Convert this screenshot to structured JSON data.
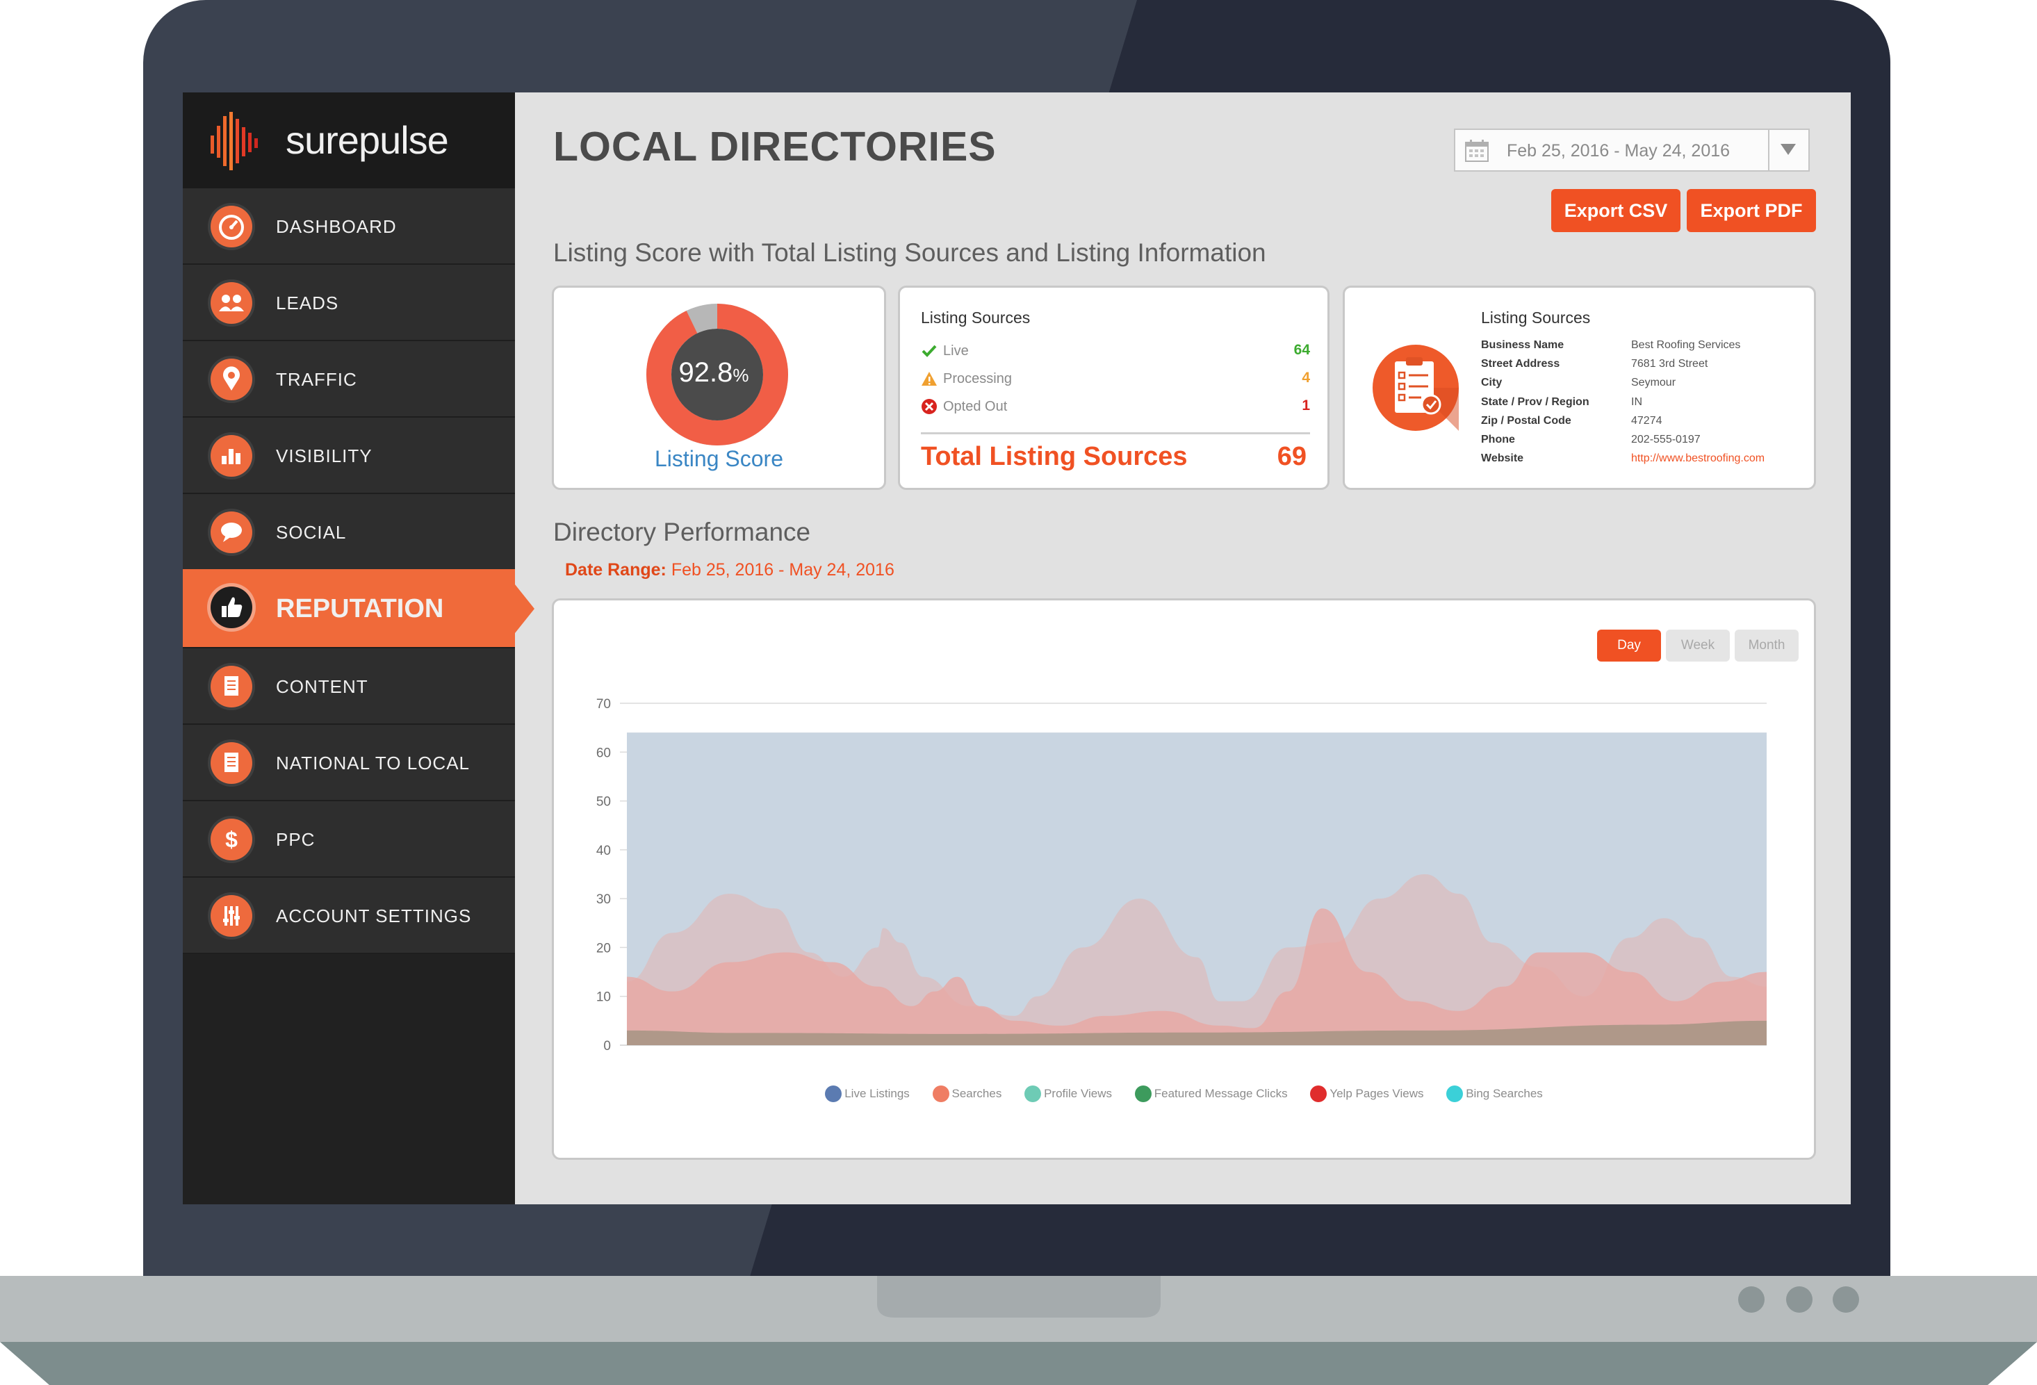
{
  "brand": {
    "name": "surepulse"
  },
  "sidebar": {
    "items": [
      {
        "label": "DASHBOARD",
        "icon": "speedometer-icon"
      },
      {
        "label": "LEADS",
        "icon": "users-icon"
      },
      {
        "label": "TRAFFIC",
        "icon": "map-pin-icon"
      },
      {
        "label": "VISIBILITY",
        "icon": "bar-chart-icon"
      },
      {
        "label": "SOCIAL",
        "icon": "speech-bubble-icon"
      },
      {
        "label": "REPUTATION",
        "icon": "thumbs-up-icon",
        "active": true
      },
      {
        "label": "CONTENT",
        "icon": "document-icon"
      },
      {
        "label": "NATIONAL TO LOCAL",
        "icon": "document-icon"
      },
      {
        "label": "PPC",
        "icon": "dollar-icon"
      },
      {
        "label": "ACCOUNT SETTINGS",
        "icon": "sliders-icon"
      }
    ]
  },
  "header": {
    "title": "LOCAL DIRECTORIES",
    "date_range": "Feb 25, 2016 - May 24, 2016",
    "export_csv": "Export CSV",
    "export_pdf": "Export PDF"
  },
  "listing_section": {
    "title": "Listing Score with Total Listing Sources and Listing Information",
    "score": {
      "value": "92.8",
      "unit": "%",
      "label": "Listing Score",
      "fraction": 0.928
    },
    "sources": {
      "title": "Listing Sources",
      "rows": [
        {
          "label": "Live",
          "value": "64",
          "icon": "check-icon",
          "color": "#3cab2f"
        },
        {
          "label": "Processing",
          "value": "4",
          "icon": "warning-icon",
          "color": "#f0a030"
        },
        {
          "label": "Opted Out",
          "value": "1",
          "icon": "error-icon",
          "color": "#d8231e"
        }
      ],
      "total_label": "Total Listing Sources",
      "total_value": "69"
    },
    "info": {
      "title": "Listing Sources",
      "icon": "clipboard-checklist-icon",
      "rows": [
        {
          "key": "Business Name",
          "value": "Best Roofing Services"
        },
        {
          "key": "Street Address",
          "value": "7681 3rd Street"
        },
        {
          "key": "City",
          "value": "Seymour"
        },
        {
          "key": "State / Prov / Region",
          "value": "IN"
        },
        {
          "key": "Zip / Postal Code",
          "value": "47274"
        },
        {
          "key": "Phone",
          "value": "202-555-0197"
        },
        {
          "key": "Website",
          "value": "http://www.bestroofing.com",
          "link": true
        }
      ]
    }
  },
  "performance": {
    "title": "Directory Performance",
    "date_range_label": "Date Range:",
    "date_range_value": " Feb 25, 2016 - May 24, 2016",
    "toggles": {
      "day": "Day",
      "week": "Week",
      "month": "Month",
      "active": "day"
    }
  },
  "chart_data": {
    "type": "area",
    "ylim": [
      0,
      70
    ],
    "yticks": [
      0,
      10,
      20,
      30,
      40,
      50,
      60,
      70
    ],
    "grid": true,
    "legend_position": "bottom",
    "series": [
      {
        "name": "Live Listings",
        "color": "#5b7bb1",
        "fill": "#c9d5e1",
        "x": [
          0,
          1
        ],
        "y": [
          64,
          64
        ]
      },
      {
        "name": "Searches",
        "color": "#ef7d63",
        "fill": "#e9a6a1",
        "x": [
          0,
          0.04,
          0.09,
          0.14,
          0.18,
          0.22,
          0.25,
          0.27,
          0.29,
          0.31,
          0.34,
          0.38,
          0.42,
          0.47,
          0.52,
          0.55,
          0.58,
          0.61,
          0.65,
          0.69,
          0.73,
          0.77,
          0.8,
          0.84,
          0.88,
          0.92,
          0.96,
          1
        ],
        "y": [
          14,
          11,
          17,
          19,
          17,
          12,
          8,
          11,
          14,
          8,
          5,
          4,
          6,
          7,
          4,
          3.5,
          11,
          28,
          15,
          9,
          7,
          12,
          19,
          19,
          15,
          9,
          13,
          15
        ]
      },
      {
        "name": "Profile Views",
        "color": "#6ecbb5",
        "fill": "#ddbcbd",
        "x": [
          0,
          0.04,
          0.09,
          0.13,
          0.16,
          0.19,
          0.22,
          0.225,
          0.24,
          0.26,
          0.3,
          0.34,
          0.36,
          0.4,
          0.45,
          0.5,
          0.52,
          0.54,
          0.58,
          0.62,
          0.66,
          0.7,
          0.73,
          0.76,
          0.8,
          0.84,
          0.88,
          0.91,
          0.94,
          0.97,
          1
        ],
        "y": [
          13,
          23,
          31,
          28,
          19,
          14,
          20,
          24,
          21,
          14,
          8,
          6,
          10,
          20,
          30,
          18,
          9,
          9,
          20,
          21,
          30,
          35,
          31,
          21,
          16,
          10,
          22,
          26,
          22,
          14,
          12
        ]
      },
      {
        "name": "Featured Message Clicks",
        "color": "#3d9b5d",
        "fill": "#a89685",
        "x": [
          0,
          0.1,
          0.3,
          0.5,
          0.7,
          0.9,
          1
        ],
        "y": [
          3,
          2.5,
          2.3,
          2.6,
          3,
          4.2,
          5
        ]
      },
      {
        "name": "Yelp Pages Views",
        "color": "#e02d2d"
      },
      {
        "name": "Bing Searches",
        "color": "#3bd0d8"
      }
    ]
  }
}
